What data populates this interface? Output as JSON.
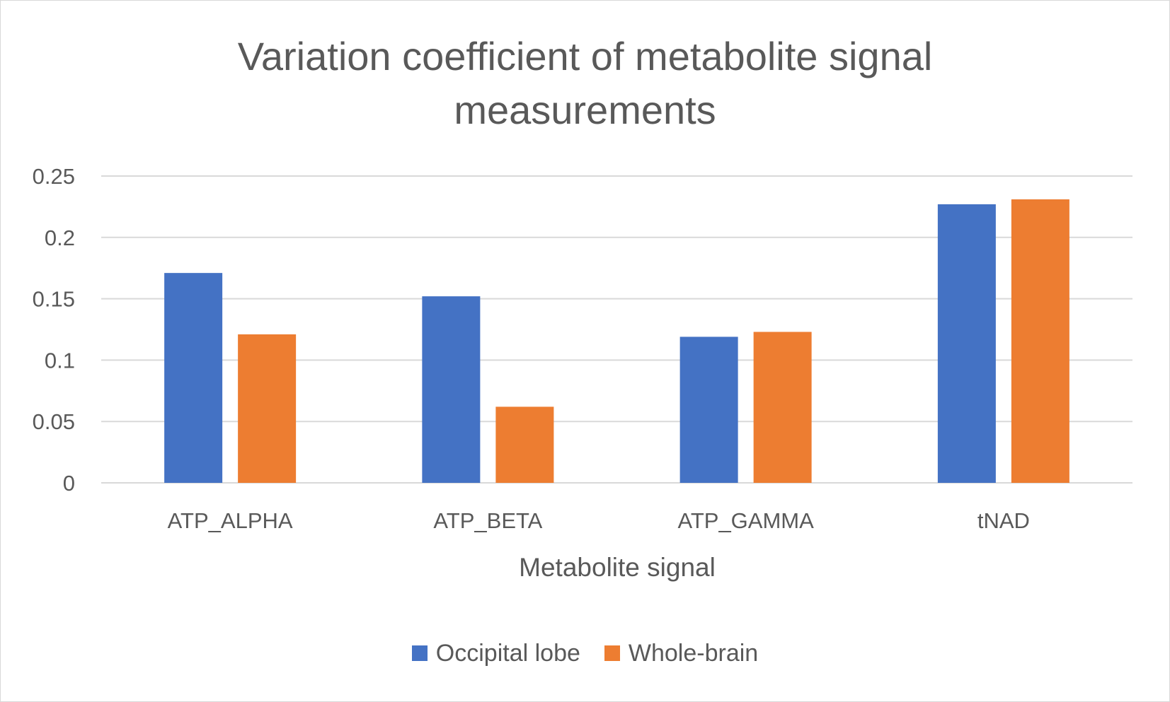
{
  "chart_data": {
    "type": "bar",
    "title_lines": [
      "Variation coefficient of metabolite signal",
      "measurements"
    ],
    "xlabel": "Metabolite signal",
    "ylabel": "",
    "categories": [
      "ATP_ALPHA",
      "ATP_BETA",
      "ATP_GAMMA",
      "tNAD"
    ],
    "series": [
      {
        "name": "Occipital lobe",
        "color": "#4472c4",
        "values": [
          0.171,
          0.152,
          0.119,
          0.227
        ]
      },
      {
        "name": "Whole-brain",
        "color": "#ed7d31",
        "values": [
          0.121,
          0.062,
          0.123,
          0.231
        ]
      }
    ],
    "ylim": [
      0,
      0.25
    ],
    "yticks": [
      0,
      0.05,
      0.1,
      0.15,
      0.2,
      0.25
    ],
    "ytick_labels": [
      "0",
      "0.05",
      "0.1",
      "0.15",
      "0.2",
      "0.25"
    ],
    "grid": true,
    "gridline_color": "#d9d9d9",
    "legend_position": "bottom"
  }
}
